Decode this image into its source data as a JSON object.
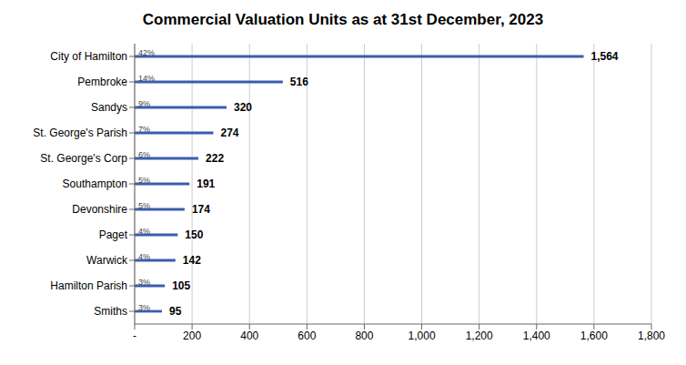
{
  "chart_data": {
    "type": "bar",
    "orientation": "horizontal",
    "title": "Commercial Valuation Units as at 31st December, 2023",
    "categories": [
      "Smiths",
      "Hamilton Parish",
      "Warwick",
      "Paget",
      "Devonshire",
      "Southampton",
      "St. George's Corp",
      "St. George's Parish",
      "Sandys",
      "Pembroke",
      "City of Hamilton"
    ],
    "values": [
      95,
      105,
      142,
      150,
      174,
      191,
      222,
      274,
      320,
      516,
      1564
    ],
    "value_labels": [
      "95",
      "105",
      "142",
      "150",
      "174",
      "191",
      "222",
      "274",
      "320",
      "516",
      "1,564"
    ],
    "data_labels": true,
    "annotations": [
      "3%",
      "3%",
      "4%",
      "4%",
      "5%",
      "5%",
      "6%",
      "7%",
      "9%",
      "14%",
      "42%"
    ],
    "color": "#3a5dae",
    "xlim": [
      0,
      1800
    ],
    "xticks": [
      {
        "value": 0,
        "label": "-"
      },
      200,
      400,
      600,
      800,
      {
        "value": 1000,
        "label": "1,000"
      },
      {
        "value": 1200,
        "label": "1,200"
      },
      {
        "value": 1400,
        "label": "1,400"
      },
      {
        "value": 1600,
        "label": "1,600"
      },
      {
        "value": 1800,
        "label": "1,800"
      }
    ],
    "grid": true
  }
}
